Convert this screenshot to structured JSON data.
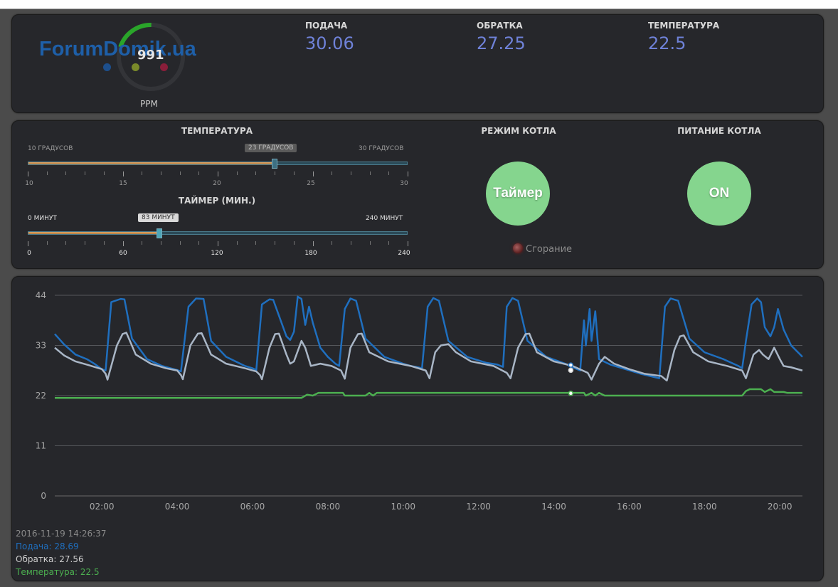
{
  "header": {
    "logo_text": "ForumDomik.ua",
    "gauge": {
      "value": "991",
      "label": "PPM",
      "fraction": 0.45
    },
    "metrics": [
      {
        "label": "ПОДАЧА",
        "value": "30.06"
      },
      {
        "label": "ОБРАТКА",
        "value": "27.25"
      },
      {
        "label": "ТЕМПЕРАТУРА",
        "value": "22.5"
      }
    ],
    "accent_color": "#6f82d8"
  },
  "controls": {
    "temperature": {
      "title": "ТЕМПЕРАТУРА",
      "min_label": "10 ГРАДУСОВ",
      "max_label": "30 ГРАДУСОВ",
      "value_label": "23 ГРАДУСОВ",
      "min": 10,
      "max": 30,
      "value": 23,
      "tick_labels": [
        "10",
        "15",
        "20",
        "25",
        "30"
      ]
    },
    "timer": {
      "title": "ТАЙМЕР (МИН.)",
      "min_label": "0 МИНУТ",
      "max_label": "240 МИНУТ",
      "value_label": "83 МИНУТ",
      "min": 0,
      "max": 240,
      "value": 83,
      "tick_labels": [
        "0",
        "60",
        "120",
        "180",
        "240"
      ]
    },
    "boiler_mode": {
      "title": "РЕЖИМ КОТЛА",
      "button_label": "Таймер",
      "indicator_label": "Сгорание"
    },
    "boiler_power": {
      "title": "ПИТАНИЕ КОТЛА",
      "button_label": "ON"
    },
    "button_color": "#85d58e"
  },
  "chart_data": {
    "type": "line",
    "y_ticks": [
      "44",
      "33",
      "22",
      "11",
      "0"
    ],
    "ylim": [
      0,
      44
    ],
    "x_ticks": [
      "02:00",
      "04:00",
      "06:00",
      "08:00",
      "10:00",
      "12:00",
      "14:00",
      "16:00",
      "18:00",
      "20:00"
    ],
    "xlim": [
      0.75,
      20.6
    ],
    "grid": true,
    "series": [
      {
        "name": "Подача",
        "color": "#1f6fbf",
        "points": [
          [
            0.75,
            35.5
          ],
          [
            1.0,
            33.2
          ],
          [
            1.3,
            31.0
          ],
          [
            1.6,
            30.0
          ],
          [
            1.8,
            29.0
          ],
          [
            2.0,
            27.8
          ],
          [
            2.1,
            27.5
          ],
          [
            2.25,
            42.5
          ],
          [
            2.5,
            43.2
          ],
          [
            2.6,
            43.1
          ],
          [
            2.8,
            34.5
          ],
          [
            3.2,
            30.0
          ],
          [
            3.6,
            28.5
          ],
          [
            4.0,
            27.6
          ],
          [
            4.1,
            27.3
          ],
          [
            4.3,
            41.5
          ],
          [
            4.5,
            43.3
          ],
          [
            4.7,
            43.2
          ],
          [
            4.9,
            34.0
          ],
          [
            5.3,
            30.5
          ],
          [
            5.8,
            28.5
          ],
          [
            6.0,
            28.0
          ],
          [
            6.1,
            27.6
          ],
          [
            6.25,
            42.0
          ],
          [
            6.45,
            43.1
          ],
          [
            6.55,
            43.0
          ],
          [
            6.9,
            35.0
          ],
          [
            7.0,
            34.2
          ],
          [
            7.1,
            36.0
          ],
          [
            7.2,
            43.7
          ],
          [
            7.3,
            43.2
          ],
          [
            7.4,
            37.5
          ],
          [
            7.5,
            41.5
          ],
          [
            7.6,
            38.0
          ],
          [
            7.8,
            32.5
          ],
          [
            8.0,
            30.5
          ],
          [
            8.2,
            29.0
          ],
          [
            8.3,
            28.5
          ],
          [
            8.45,
            41.0
          ],
          [
            8.6,
            43.3
          ],
          [
            8.75,
            42.8
          ],
          [
            9.0,
            34.5
          ],
          [
            9.5,
            30.5
          ],
          [
            10.0,
            29.0
          ],
          [
            10.2,
            28.5
          ],
          [
            10.4,
            28.2
          ],
          [
            10.5,
            28.0
          ],
          [
            10.65,
            41.5
          ],
          [
            10.8,
            43.4
          ],
          [
            10.95,
            42.8
          ],
          [
            11.2,
            34.0
          ],
          [
            11.7,
            30.5
          ],
          [
            12.2,
            29.2
          ],
          [
            12.5,
            28.8
          ],
          [
            12.65,
            28.3
          ],
          [
            12.75,
            41.5
          ],
          [
            12.9,
            43.4
          ],
          [
            13.05,
            42.8
          ],
          [
            13.3,
            34.0
          ],
          [
            13.8,
            30.5
          ],
          [
            14.3,
            29.0
          ],
          [
            14.5,
            28.2
          ],
          [
            14.7,
            27.5
          ],
          [
            14.8,
            38.5
          ],
          [
            14.85,
            33.0
          ],
          [
            14.95,
            41.0
          ],
          [
            15.0,
            34.0
          ],
          [
            15.1,
            40.5
          ],
          [
            15.2,
            30.0
          ],
          [
            15.5,
            28.8
          ],
          [
            15.9,
            27.8
          ],
          [
            16.3,
            26.8
          ],
          [
            16.7,
            26.0
          ],
          [
            16.8,
            25.8
          ],
          [
            16.95,
            41.5
          ],
          [
            17.1,
            43.3
          ],
          [
            17.3,
            42.8
          ],
          [
            17.6,
            34.5
          ],
          [
            18.0,
            31.5
          ],
          [
            18.5,
            30.0
          ],
          [
            18.9,
            28.5
          ],
          [
            19.0,
            28.0
          ],
          [
            19.1,
            34.0
          ],
          [
            19.25,
            42.0
          ],
          [
            19.4,
            43.3
          ],
          [
            19.5,
            42.5
          ],
          [
            19.6,
            37.0
          ],
          [
            19.75,
            35.0
          ],
          [
            19.85,
            37.0
          ],
          [
            19.95,
            41.0
          ],
          [
            20.1,
            36.5
          ],
          [
            20.3,
            33.0
          ],
          [
            20.6,
            30.5
          ]
        ]
      },
      {
        "name": "Обратка",
        "color": "#a9b6c6",
        "points": [
          [
            0.75,
            32.5
          ],
          [
            1.0,
            30.8
          ],
          [
            1.3,
            29.5
          ],
          [
            1.6,
            28.8
          ],
          [
            2.0,
            27.8
          ],
          [
            2.1,
            26.8
          ],
          [
            2.15,
            25.5
          ],
          [
            2.4,
            33.0
          ],
          [
            2.55,
            35.5
          ],
          [
            2.65,
            35.8
          ],
          [
            2.9,
            31.0
          ],
          [
            3.3,
            29.0
          ],
          [
            3.7,
            28.0
          ],
          [
            4.0,
            27.5
          ],
          [
            4.1,
            26.5
          ],
          [
            4.15,
            25.6
          ],
          [
            4.35,
            33.0
          ],
          [
            4.55,
            35.6
          ],
          [
            4.65,
            35.7
          ],
          [
            4.9,
            31.0
          ],
          [
            5.3,
            29.0
          ],
          [
            5.8,
            28.0
          ],
          [
            6.1,
            27.3
          ],
          [
            6.2,
            26.5
          ],
          [
            6.25,
            25.6
          ],
          [
            6.45,
            32.5
          ],
          [
            6.6,
            35.5
          ],
          [
            6.7,
            35.6
          ],
          [
            6.9,
            31.0
          ],
          [
            7.0,
            29.0
          ],
          [
            7.1,
            29.5
          ],
          [
            7.3,
            34.0
          ],
          [
            7.4,
            32.5
          ],
          [
            7.55,
            28.5
          ],
          [
            7.8,
            29.0
          ],
          [
            8.1,
            28.5
          ],
          [
            8.35,
            27.5
          ],
          [
            8.45,
            25.7
          ],
          [
            8.6,
            32.5
          ],
          [
            8.8,
            35.5
          ],
          [
            8.9,
            35.6
          ],
          [
            9.1,
            31.5
          ],
          [
            9.6,
            29.5
          ],
          [
            10.2,
            28.5
          ],
          [
            10.6,
            27.5
          ],
          [
            10.7,
            25.8
          ],
          [
            10.85,
            31.5
          ],
          [
            11.0,
            33.0
          ],
          [
            11.2,
            33.3
          ],
          [
            11.4,
            31.5
          ],
          [
            11.8,
            29.5
          ],
          [
            12.4,
            28.5
          ],
          [
            12.75,
            27.0
          ],
          [
            12.85,
            25.8
          ],
          [
            13.05,
            32.5
          ],
          [
            13.25,
            35.5
          ],
          [
            13.35,
            35.6
          ],
          [
            13.55,
            31.5
          ],
          [
            14.0,
            29.5
          ],
          [
            14.5,
            28.5
          ],
          [
            14.9,
            27.0
          ],
          [
            15.0,
            25.5
          ],
          [
            15.2,
            29.0
          ],
          [
            15.35,
            30.5
          ],
          [
            15.6,
            29.0
          ],
          [
            16.0,
            27.8
          ],
          [
            16.4,
            26.8
          ],
          [
            16.85,
            26.3
          ],
          [
            17.0,
            25.3
          ],
          [
            17.2,
            32.0
          ],
          [
            17.35,
            35.0
          ],
          [
            17.45,
            35.2
          ],
          [
            17.7,
            31.5
          ],
          [
            18.1,
            29.5
          ],
          [
            18.6,
            28.5
          ],
          [
            19.0,
            27.5
          ],
          [
            19.1,
            25.8
          ],
          [
            19.3,
            31.0
          ],
          [
            19.45,
            32.0
          ],
          [
            19.55,
            31.0
          ],
          [
            19.7,
            30.0
          ],
          [
            19.85,
            32.5
          ],
          [
            20.0,
            30.0
          ],
          [
            20.1,
            28.5
          ],
          [
            20.3,
            28.2
          ],
          [
            20.6,
            27.5
          ]
        ]
      },
      {
        "name": "Температура",
        "color": "#4caf50",
        "points": [
          [
            0.75,
            21.5
          ],
          [
            7.3,
            21.5
          ],
          [
            7.45,
            22.2
          ],
          [
            7.6,
            22.0
          ],
          [
            7.75,
            22.6
          ],
          [
            8.4,
            22.6
          ],
          [
            8.45,
            22.0
          ],
          [
            9.0,
            22.0
          ],
          [
            9.1,
            22.6
          ],
          [
            9.2,
            22.0
          ],
          [
            9.3,
            22.6
          ],
          [
            14.5,
            22.6
          ],
          [
            14.8,
            22.6
          ],
          [
            14.85,
            22.0
          ],
          [
            15.0,
            22.6
          ],
          [
            15.1,
            22.0
          ],
          [
            15.2,
            22.6
          ],
          [
            15.35,
            22.0
          ],
          [
            19.0,
            22.0
          ],
          [
            19.1,
            23.0
          ],
          [
            19.2,
            23.4
          ],
          [
            19.5,
            23.4
          ],
          [
            19.6,
            22.8
          ],
          [
            19.75,
            23.4
          ],
          [
            19.85,
            22.8
          ],
          [
            20.1,
            22.8
          ],
          [
            20.2,
            22.6
          ],
          [
            20.6,
            22.6
          ]
        ]
      }
    ]
  },
  "chart_legend": {
    "timestamp": "2016-11-19 14:26:37",
    "items": [
      {
        "text": "Подача: 28.69",
        "color": "#1f6fbf"
      },
      {
        "text": "Обратка: 27.56",
        "color": "#cfcfcf"
      },
      {
        "text": "Температура: 22.5",
        "color": "#4caf50"
      }
    ]
  }
}
